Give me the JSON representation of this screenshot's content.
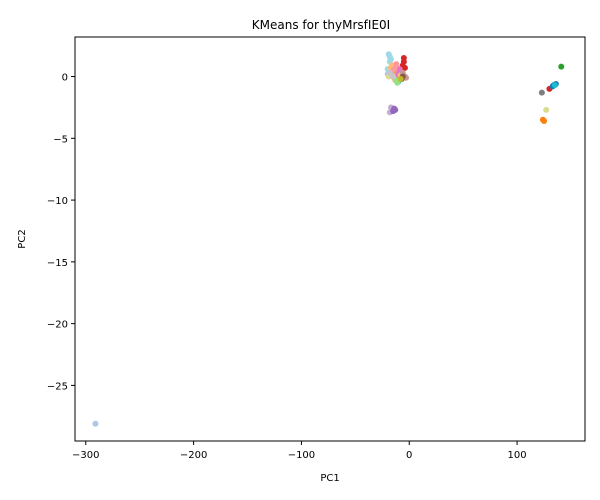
{
  "chart_data": {
    "type": "scatter",
    "title": "KMeans for thyMrsfIE0I",
    "xlabel": "PC1",
    "ylabel": "PC2",
    "xlim": [
      -310,
      163
    ],
    "ylim": [
      -29.5,
      3.2
    ],
    "grid": false,
    "x_ticks": [
      -300,
      -200,
      -100,
      0,
      100
    ],
    "x_tick_labels": [
      "−300",
      "−200",
      "−100",
      "0",
      "100"
    ],
    "y_ticks": [
      0,
      -5,
      -10,
      -15,
      -20,
      -25
    ],
    "y_tick_labels": [
      "0",
      "−5",
      "−10",
      "−15",
      "−20",
      "−25"
    ],
    "series": [
      {
        "color": "#9edae5",
        "points": [
          [
            -19,
            1.8
          ],
          [
            -18,
            1.6
          ],
          [
            -17,
            1.4
          ],
          [
            -20,
            0.6
          ],
          [
            -18,
            1.2
          ]
        ]
      },
      {
        "color": "#aec7e8",
        "points": [
          [
            -291,
            -28.1
          ],
          [
            -20,
            0.2
          ],
          [
            -17,
            0.5
          ]
        ]
      },
      {
        "color": "#d62728",
        "points": [
          [
            -5,
            1.5
          ],
          [
            -5,
            1.2
          ],
          [
            -6,
            0.9
          ],
          [
            -4,
            0.7
          ],
          [
            130,
            -1.0
          ]
        ]
      },
      {
        "color": "#2ca02c",
        "points": [
          [
            141,
            0.8
          ]
        ]
      },
      {
        "color": "#7f7f7f",
        "points": [
          [
            123,
            -1.3
          ]
        ]
      },
      {
        "color": "#1f77b4",
        "points": [
          [
            134,
            -0.7
          ],
          [
            136,
            -0.6
          ],
          [
            133,
            -0.8
          ]
        ]
      },
      {
        "color": "#17becf",
        "points": [
          [
            135,
            -0.7
          ],
          [
            -10,
            -0.4
          ],
          [
            -12,
            -0.1
          ]
        ]
      },
      {
        "color": "#ff7f0e",
        "points": [
          [
            124,
            -3.5
          ],
          [
            125,
            -3.6
          ],
          [
            -14,
            -0.1
          ],
          [
            -10,
            0.2
          ]
        ]
      },
      {
        "color": "#dbdb8d",
        "points": [
          [
            127,
            -2.7
          ],
          [
            -19,
            0.0
          ]
        ]
      },
      {
        "color": "#c5b0d5",
        "points": [
          [
            -17,
            -2.5
          ],
          [
            -18,
            -2.9
          ]
        ]
      },
      {
        "color": "#9467bd",
        "points": [
          [
            -14,
            -2.6
          ],
          [
            -15,
            -2.8
          ],
          [
            -13,
            -2.7
          ]
        ]
      },
      {
        "color": "#f7b6d2",
        "points": [
          [
            -12,
            0.8
          ],
          [
            -11,
            0.5
          ],
          [
            -13,
            0.3
          ]
        ]
      },
      {
        "color": "#e377c2",
        "points": [
          [
            -10,
            0.4
          ],
          [
            -9,
            0.6
          ],
          [
            -11,
            0.1
          ]
        ]
      },
      {
        "color": "#ffbb78",
        "points": [
          [
            -16,
            0.9
          ],
          [
            -17,
            0.7
          ],
          [
            -8,
            0.1
          ],
          [
            -13,
            -0.3
          ]
        ]
      },
      {
        "color": "#98df8a",
        "points": [
          [
            -11,
            -0.5
          ],
          [
            -12,
            -0.3
          ]
        ]
      },
      {
        "color": "#c49c94",
        "points": [
          [
            -3,
            -0.1
          ],
          [
            -4,
            0.0
          ],
          [
            -6,
            0.3
          ]
        ]
      },
      {
        "color": "#8c564b",
        "points": [
          [
            -6,
            0.0
          ],
          [
            -7,
            -0.2
          ]
        ]
      },
      {
        "color": "#bcbd22",
        "points": [
          [
            -8,
            -0.2
          ],
          [
            -15,
            0.4
          ]
        ]
      },
      {
        "color": "#ff9896",
        "points": [
          [
            -14,
            0.6
          ],
          [
            -12,
            1.0
          ],
          [
            -16,
            0.2
          ]
        ]
      },
      {
        "color": "#c7c7c7",
        "points": [
          [
            -18,
            0.3
          ],
          [
            -15,
            0.0
          ]
        ]
      }
    ]
  }
}
